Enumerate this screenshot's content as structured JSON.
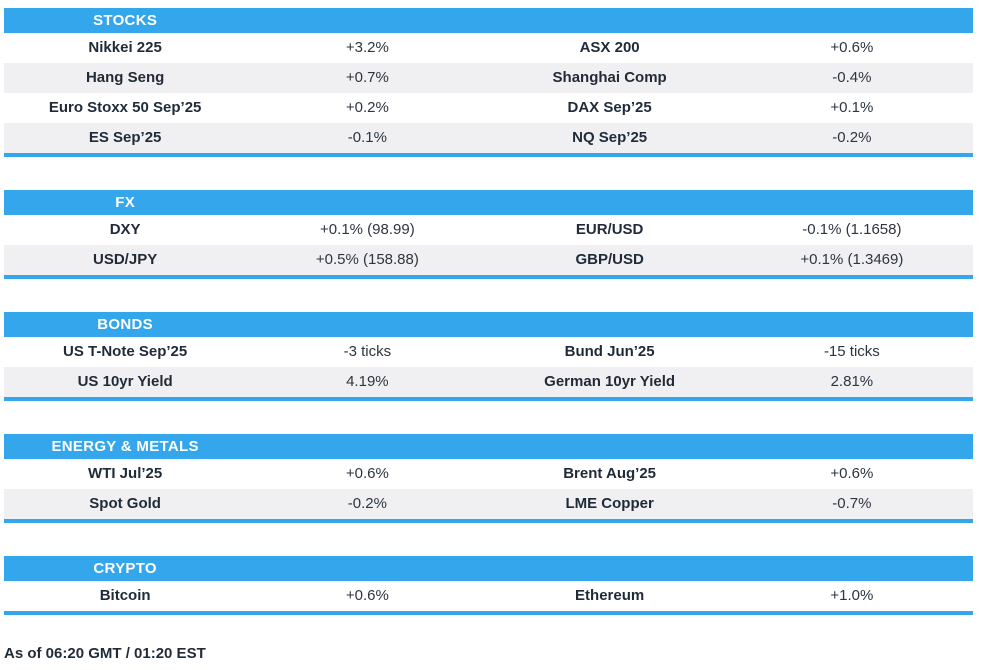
{
  "colors": {
    "header_blue": "#34a7ec",
    "divider_blue": "#34a7ec",
    "row_alt": "#f0f0f2",
    "header_text": "#ffffff",
    "name_text": "#1f2b38",
    "value_text": "#2c3540"
  },
  "chart_data": [
    {
      "type": "table",
      "title": "STOCKS",
      "rows": [
        [
          "Nikkei 225",
          "+3.2%",
          "ASX 200",
          "+0.6%"
        ],
        [
          "Hang Seng",
          "+0.7%",
          "Shanghai Comp",
          "-0.4%"
        ],
        [
          "Euro Stoxx 50 Sep’25",
          "+0.2%",
          "DAX Sep’25",
          "+0.1%"
        ],
        [
          "ES Sep’25",
          "-0.1%",
          "NQ Sep’25",
          "-0.2%"
        ]
      ]
    },
    {
      "type": "table",
      "title": "FX",
      "rows": [
        [
          "DXY",
          "+0.1% (98.99)",
          "EUR/USD",
          "-0.1% (1.1658)"
        ],
        [
          "USD/JPY",
          "+0.5% (158.88)",
          "GBP/USD",
          "+0.1% (1.3469)"
        ]
      ]
    },
    {
      "type": "table",
      "title": "BONDS",
      "rows": [
        [
          "US T-Note Sep’25",
          "-3 ticks",
          "Bund Jun’25",
          "-15 ticks"
        ],
        [
          "US 10yr Yield",
          "4.19%",
          "German 10yr Yield",
          "2.81%"
        ]
      ]
    },
    {
      "type": "table",
      "title": "ENERGY & METALS",
      "rows": [
        [
          "WTI Jul’25",
          "+0.6%",
          "Brent Aug’25",
          "+0.6%"
        ],
        [
          "Spot Gold",
          "-0.2%",
          "LME Copper",
          "-0.7%"
        ]
      ]
    },
    {
      "type": "table",
      "title": "CRYPTO",
      "rows": [
        [
          "Bitcoin",
          "+0.6%",
          "Ethereum",
          "+1.0%"
        ]
      ]
    }
  ],
  "footer": "As of 06:20 GMT / 01:20 EST"
}
